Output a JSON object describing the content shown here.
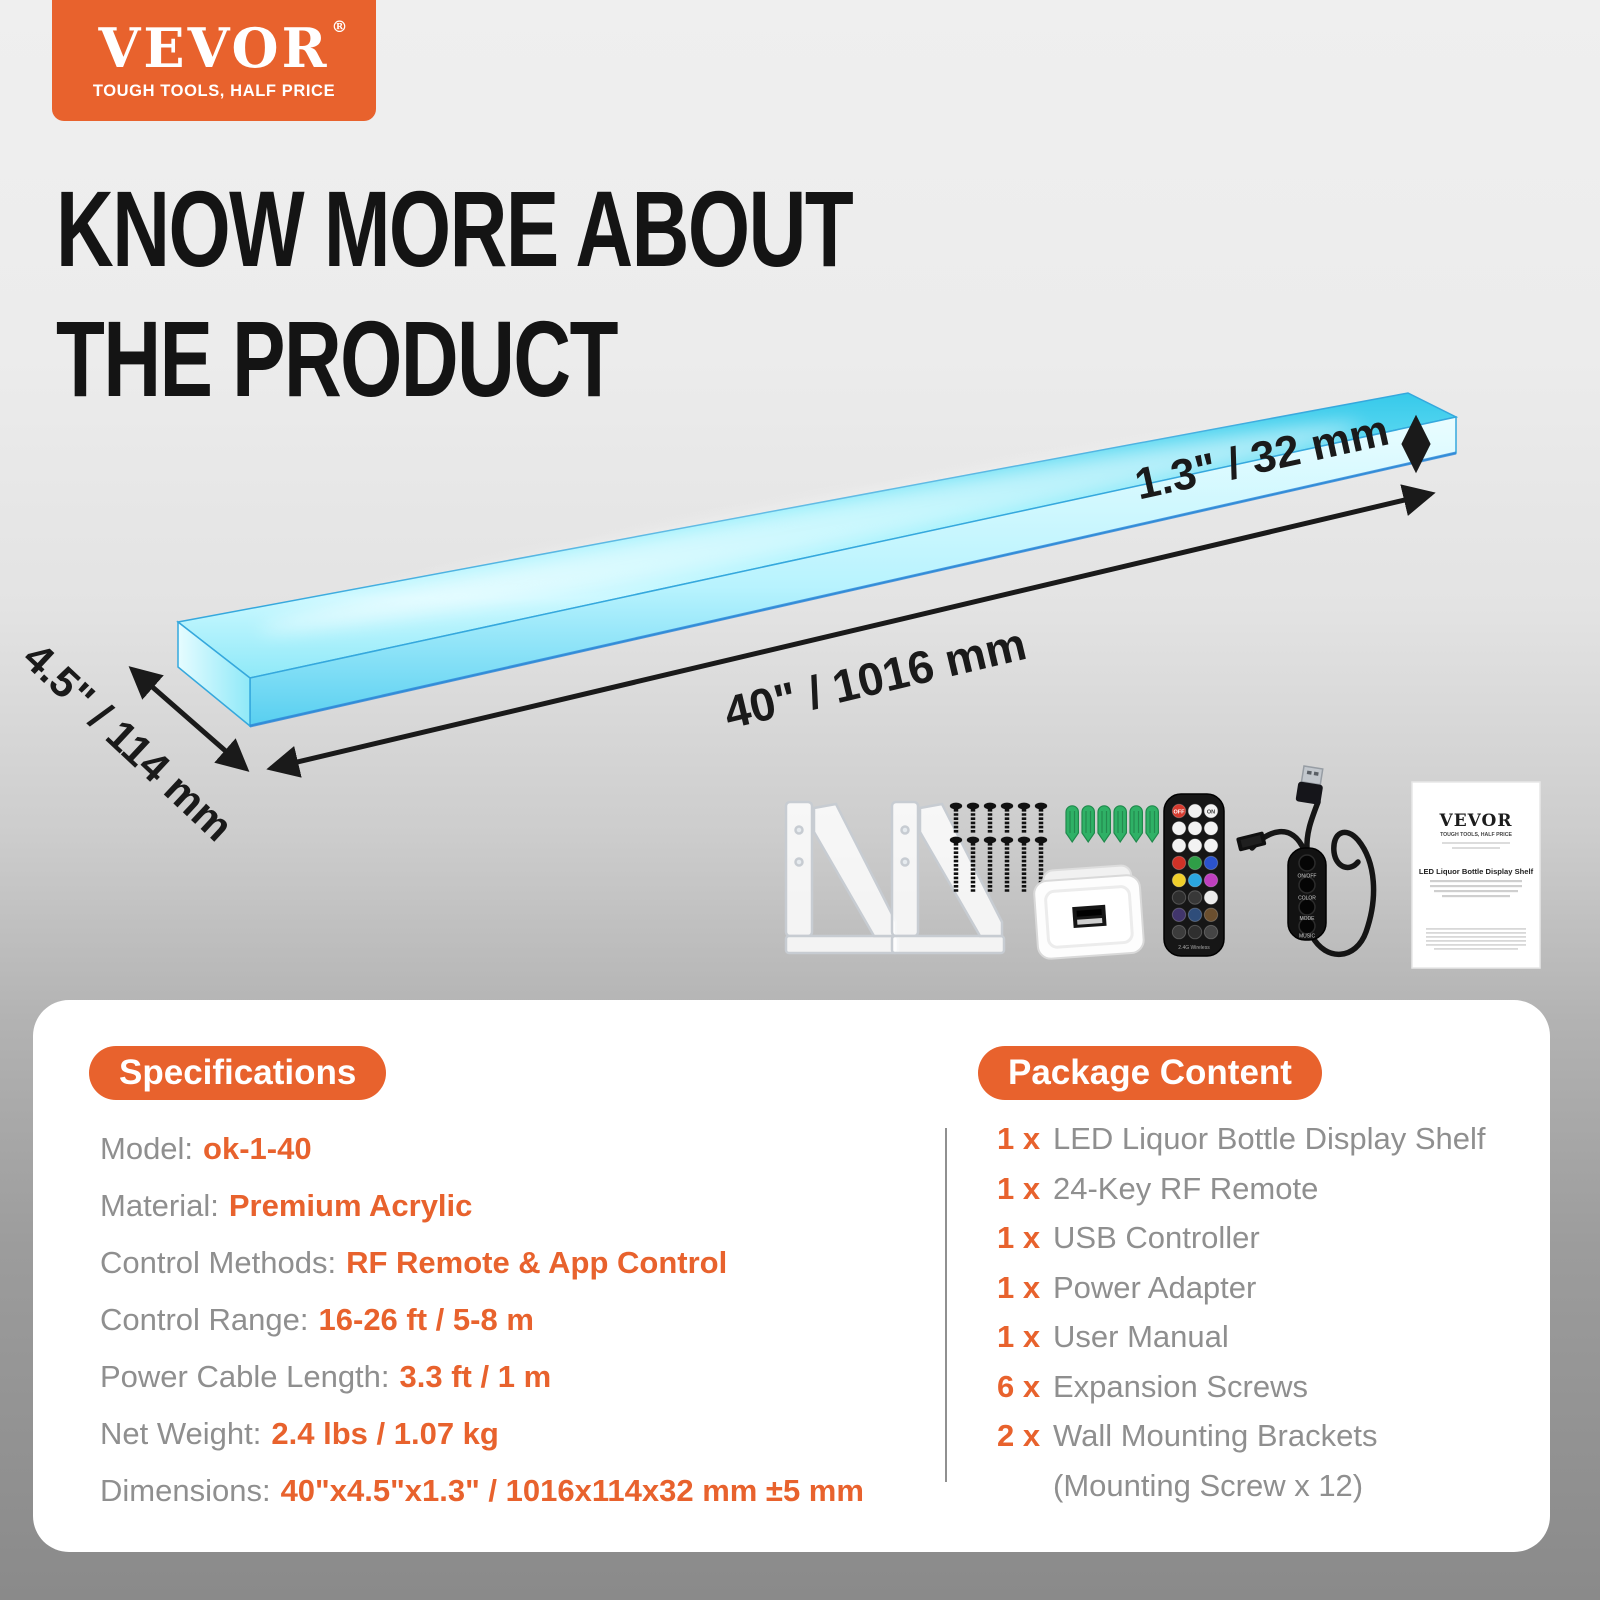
{
  "logo": {
    "name": "VEVOR",
    "registered": "®",
    "tagline": "TOUGH TOOLS, HALF PRICE"
  },
  "headline": {
    "line1": "KNOW MORE ABOUT",
    "line2": "THE PRODUCT"
  },
  "diagram": {
    "length_label": "40\" / 1016 mm",
    "depth_label": "4.5\" / 114 mm",
    "thickness_label": "1.3\" / 32 mm"
  },
  "colors": {
    "brand_orange": "#e8622d",
    "shelf_cyan": "#4fdcf2",
    "shelf_edge_blue": "#35a8dd",
    "anchor_green": "#2fb166",
    "arrow_black": "#1a1a1a",
    "label_gray": "#8f8f8f"
  },
  "accessories": {
    "remote": {
      "off_label": "OFF",
      "on_label": "ON",
      "bottom_label": "2.4G Wireless",
      "button_colors": [
        "#d63b2f",
        "#f2f2f2",
        "#f2f2f2",
        "#f2f2f2",
        "#f2f2f2",
        "#f2f2f2",
        "#f2f2f2",
        "#f2f2f2",
        "#f2f2f2",
        "#cf3227",
        "#2f9e47",
        "#2b53cc",
        "#efcf2b",
        "#2ba6e0",
        "#bf3fbf",
        "#2f2f2f",
        "#383838",
        "#ececec",
        "#41356b",
        "#2f4d7a",
        "#6b4f2f",
        "#3c3c3c",
        "#2f2f2f",
        "#454545"
      ]
    },
    "controller": {
      "buttons": [
        "ON/OFF",
        "COLOR",
        "MODE",
        "MUSIC"
      ]
    },
    "screws": {
      "short_count": 6,
      "long_count": 6
    },
    "anchors": {
      "count": 6
    },
    "manual": {
      "brand": "VEVOR",
      "tagline": "TOUGH TOOLS, HALF PRICE",
      "title": "LED Liquor Bottle Display Shelf"
    }
  },
  "specifications": {
    "header": "Specifications",
    "rows": [
      {
        "label": "Model:",
        "value": "ok-1-40"
      },
      {
        "label": "Material:",
        "value": "Premium Acrylic"
      },
      {
        "label": "Control Methods:",
        "value": "RF Remote & App Control"
      },
      {
        "label": "Control Range:",
        "value": "16-26 ft / 5-8 m"
      },
      {
        "label": "Power Cable Length:",
        "value": "3.3 ft / 1 m"
      },
      {
        "label": "Net Weight:",
        "value": "2.4 lbs / 1.07 kg"
      },
      {
        "label": "Dimensions:",
        "value": "40\"x4.5\"x1.3\" / 1016x114x32 mm ±5 mm"
      }
    ]
  },
  "package_content": {
    "header": "Package Content",
    "items": [
      {
        "qty": "1 x",
        "name": "LED Liquor Bottle Display Shelf"
      },
      {
        "qty": "1 x",
        "name": "24-Key RF Remote"
      },
      {
        "qty": "1 x",
        "name": "USB Controller"
      },
      {
        "qty": "1 x",
        "name": "Power Adapter"
      },
      {
        "qty": "1 x",
        "name": "User Manual"
      },
      {
        "qty": "6 x",
        "name": "Expansion Screws"
      },
      {
        "qty": "2 x",
        "name": "Wall Mounting Brackets"
      },
      {
        "qty": "",
        "name": "(Mounting Screw x 12)"
      }
    ]
  }
}
